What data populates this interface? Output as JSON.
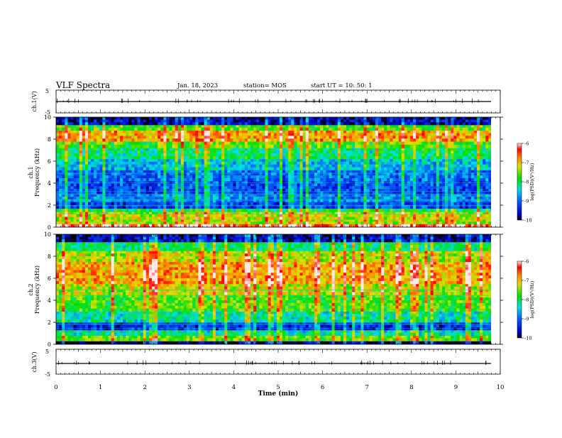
{
  "header": {
    "title": "VLF Spectra",
    "date": "Jan. 18, 2023",
    "station": "station= MOS",
    "start": "start  UT =   10: 50: 1"
  },
  "chart_data": [
    {
      "type": "line",
      "name": "ch1-waveform",
      "ylabel": "ch.1(V)",
      "yticks": [
        "5",
        "-5"
      ],
      "ylim": [
        -5,
        5
      ],
      "xlim": [
        0,
        10
      ],
      "baseline": -1.5
    },
    {
      "type": "heatmap",
      "name": "ch1-spectrogram",
      "ylabel_line1": "ch.1",
      "ylabel_line2": "Frequency (kHz)",
      "yticks": [
        "0",
        "2",
        "4",
        "6",
        "8",
        "10"
      ],
      "ylim": [
        0,
        10
      ],
      "xlim": [
        0,
        9.8
      ],
      "colorbar": {
        "label": "log(PSD)(V²/Hz)",
        "ticks": [
          "-6",
          "-7",
          "-8",
          "-9",
          "-10"
        ],
        "range": [
          -10,
          -6
        ]
      },
      "bands": [
        {
          "from": 0.0,
          "to": 0.3,
          "level": -6.2
        },
        {
          "from": 0.3,
          "to": 0.7,
          "level": -7.3
        },
        {
          "from": 0.7,
          "to": 1.4,
          "level": -7.2
        },
        {
          "from": 1.4,
          "to": 1.7,
          "level": -7.9
        },
        {
          "from": 1.7,
          "to": 2.3,
          "level": -9.2
        },
        {
          "from": 2.3,
          "to": 3.0,
          "level": -8.8
        },
        {
          "from": 3.0,
          "to": 4.2,
          "level": -9.1
        },
        {
          "from": 4.2,
          "to": 5.2,
          "level": -8.9
        },
        {
          "from": 5.2,
          "to": 6.2,
          "level": -8.5
        },
        {
          "from": 6.2,
          "to": 7.2,
          "level": -8.0
        },
        {
          "from": 7.2,
          "to": 7.8,
          "level": -7.6
        },
        {
          "from": 7.8,
          "to": 8.8,
          "level": -6.8
        },
        {
          "from": 8.8,
          "to": 9.3,
          "level": -7.6
        },
        {
          "from": 9.3,
          "to": 10.0,
          "level": -9.6
        }
      ]
    },
    {
      "type": "heatmap",
      "name": "ch2-spectrogram",
      "ylabel_line1": "ch.2",
      "ylabel_line2": "Frequency (kHz)",
      "yticks": [
        "0",
        "2",
        "4",
        "6",
        "8",
        "10"
      ],
      "ylim": [
        0,
        10
      ],
      "xlim": [
        0,
        9.8
      ],
      "colorbar": {
        "label": "log(PSD)(V²/Hz)",
        "ticks": [
          "-6",
          "-7",
          "-8",
          "-9",
          "-10"
        ],
        "range": [
          -10,
          -6
        ]
      },
      "bands": [
        {
          "from": 0.0,
          "to": 0.3,
          "level": -9.8
        },
        {
          "from": 0.3,
          "to": 0.8,
          "level": -7.5
        },
        {
          "from": 0.8,
          "to": 1.3,
          "level": -8.2
        },
        {
          "from": 1.3,
          "to": 2.0,
          "level": -9.3
        },
        {
          "from": 2.0,
          "to": 3.0,
          "level": -8.2
        },
        {
          "from": 3.0,
          "to": 4.5,
          "level": -7.6
        },
        {
          "from": 4.5,
          "to": 5.5,
          "level": -7.2
        },
        {
          "from": 5.5,
          "to": 7.5,
          "level": -6.8
        },
        {
          "from": 7.5,
          "to": 8.5,
          "level": -7.2
        },
        {
          "from": 8.5,
          "to": 9.3,
          "level": -8.0
        },
        {
          "from": 9.3,
          "to": 10.0,
          "level": -9.6
        }
      ]
    },
    {
      "type": "line",
      "name": "ch3-waveform",
      "ylabel": "ch.3(V)",
      "yticks": [
        "5",
        "-5"
      ],
      "ylim": [
        -5,
        5
      ],
      "xlim": [
        0,
        10
      ],
      "baseline": -1.5
    }
  ],
  "xaxis": {
    "label": "Time  (min)",
    "ticks": [
      "0",
      "1",
      "2",
      "3",
      "4",
      "5",
      "6",
      "7",
      "8",
      "9",
      "10"
    ],
    "range": [
      0,
      10
    ]
  }
}
